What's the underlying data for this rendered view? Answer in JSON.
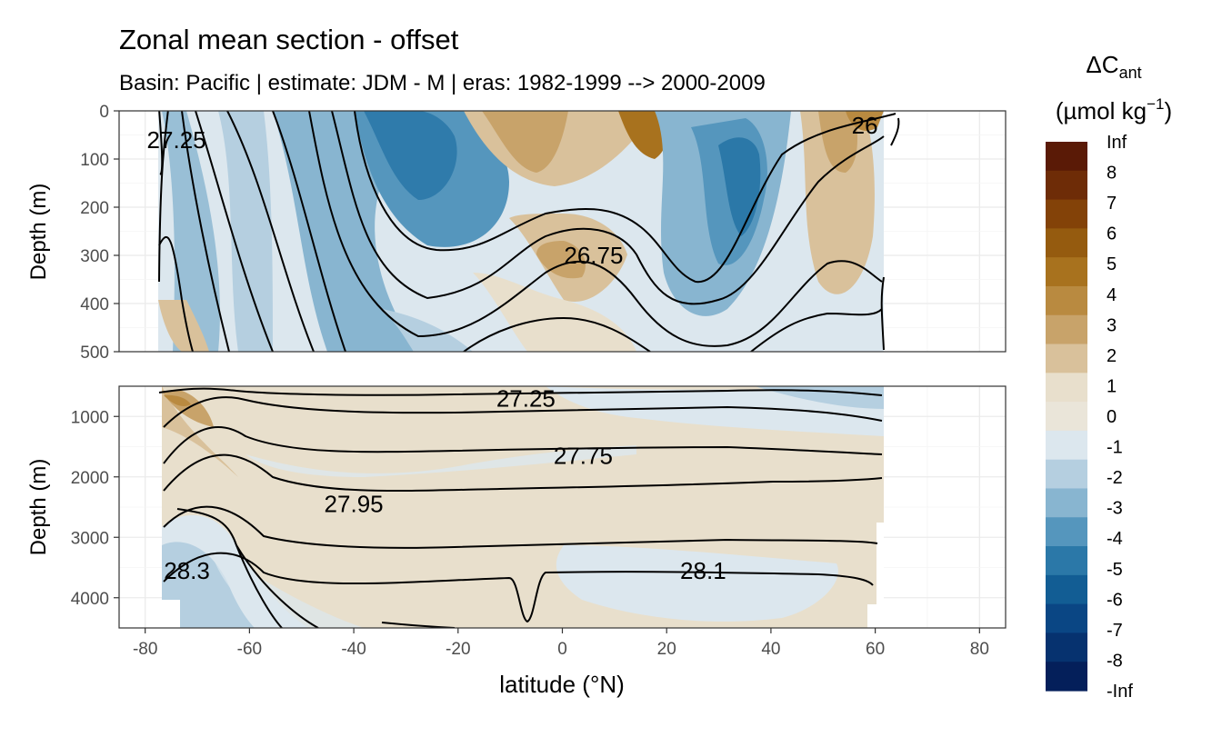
{
  "chart_data": {
    "type": "contour",
    "title": "Zonal mean section - offset",
    "subtitle": "Basin: Pacific | estimate: JDM - M | eras: 1982-1999 --> 2000-2009",
    "xlabel": "latitude (°N)",
    "xlim": [
      -85,
      85
    ],
    "xticks": [
      -80,
      -60,
      -40,
      -20,
      0,
      20,
      40,
      60,
      80
    ],
    "panels": [
      {
        "ylabel": "Depth (m)",
        "ylim": [
          0,
          500
        ],
        "yticks": [
          0,
          100,
          200,
          300,
          400,
          500
        ],
        "isopycnal_labels": [
          {
            "text": "27.25",
            "lat": -74,
            "depth": 60
          },
          {
            "text": "26.75",
            "lat": 6,
            "depth": 300
          },
          {
            "text": "26",
            "lat": 58,
            "depth": 30
          }
        ]
      },
      {
        "ylabel": "Depth (m)",
        "ylim": [
          500,
          4500
        ],
        "yticks": [
          1000,
          2000,
          3000,
          4000
        ],
        "isopycnal_labels": [
          {
            "text": "27.25",
            "lat": -7,
            "depth": 700
          },
          {
            "text": "27.75",
            "lat": 4,
            "depth": 1650
          },
          {
            "text": "27.95",
            "lat": -40,
            "depth": 2450
          },
          {
            "text": "28.3",
            "lat": -72,
            "depth": 3550
          },
          {
            "text": "28.1",
            "lat": 27,
            "depth": 3550
          }
        ]
      }
    ],
    "legend": {
      "title": "ΔC",
      "title_sub": "ant",
      "unit_prefix": "(µmol kg",
      "unit_sup": "−1",
      "unit_suffix": ")",
      "labels": [
        "Inf",
        "8",
        "7",
        "6",
        "5",
        "4",
        "3",
        "2",
        "1",
        "0",
        "-1",
        "-2",
        "-3",
        "-4",
        "-5",
        "-6",
        "-7",
        "-8",
        "-Inf"
      ],
      "colors": [
        "#5a1a06",
        "#6e2c07",
        "#834208",
        "#955b0f",
        "#a8721e",
        "#b98a40",
        "#c8a36a",
        "#d9c19b",
        "#e8dfcc",
        "#eae5d9",
        "#dce7ee",
        "#b5cfe0",
        "#88b5d0",
        "#5596bd",
        "#2b78a8",
        "#125d94",
        "#0a4684",
        "#06326f",
        "#041f5a"
      ]
    }
  }
}
